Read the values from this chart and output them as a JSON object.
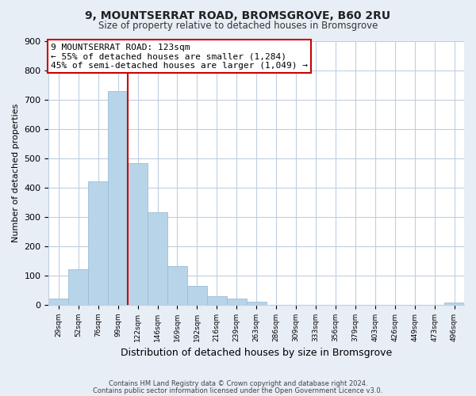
{
  "title": "9, MOUNTSERRAT ROAD, BROMSGROVE, B60 2RU",
  "subtitle": "Size of property relative to detached houses in Bromsgrove",
  "xlabel": "Distribution of detached houses by size in Bromsgrove",
  "ylabel": "Number of detached properties",
  "bin_labels": [
    "29sqm",
    "52sqm",
    "76sqm",
    "99sqm",
    "122sqm",
    "146sqm",
    "169sqm",
    "192sqm",
    "216sqm",
    "239sqm",
    "263sqm",
    "286sqm",
    "309sqm",
    "333sqm",
    "356sqm",
    "379sqm",
    "403sqm",
    "426sqm",
    "449sqm",
    "473sqm",
    "496sqm"
  ],
  "bar_heights": [
    22,
    122,
    420,
    730,
    482,
    317,
    133,
    65,
    30,
    22,
    10,
    0,
    0,
    0,
    0,
    0,
    0,
    0,
    0,
    0,
    8
  ],
  "bar_color": "#b8d4e8",
  "bar_edge_color": "#9bbcd8",
  "red_line_x": 4,
  "annotation_title": "9 MOUNTSERRAT ROAD: 123sqm",
  "annotation_line1": "← 55% of detached houses are smaller (1,284)",
  "annotation_line2": "45% of semi-detached houses are larger (1,049) →",
  "annotation_box_color": "#ffffff",
  "annotation_box_edge": "#cc0000",
  "red_line_color": "#cc0000",
  "ylim": [
    0,
    900
  ],
  "yticks": [
    0,
    100,
    200,
    300,
    400,
    500,
    600,
    700,
    800,
    900
  ],
  "footnote1": "Contains HM Land Registry data © Crown copyright and database right 2024.",
  "footnote2": "Contains public sector information licensed under the Open Government Licence v3.0.",
  "bg_color": "#e8eef6",
  "plot_bg_color": "#ffffff",
  "grid_color": "#c0cfe0"
}
